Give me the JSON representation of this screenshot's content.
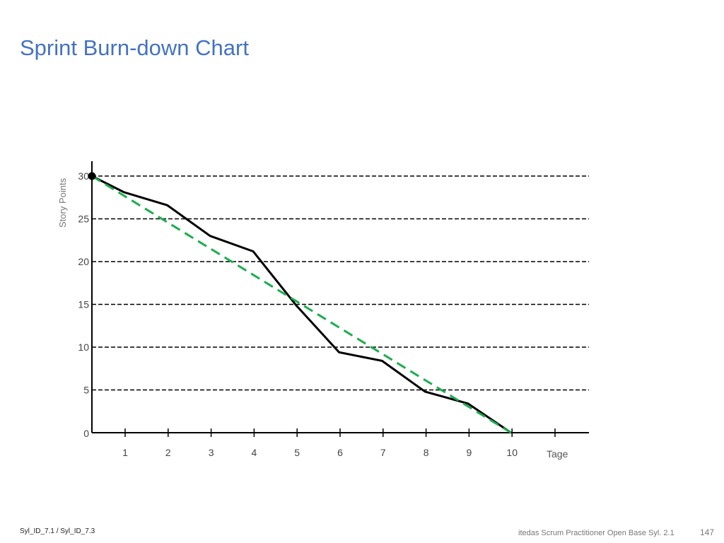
{
  "slide": {
    "title": "Sprint Burn-down Chart",
    "footer_left": "Syl_ID_7.1 / Syl_ID_7.3",
    "footer_center": "itedas Scrum Practitioner Open Base Syl. 2.1",
    "page_number": "147"
  },
  "chart_data": {
    "type": "line",
    "title": "",
    "xlabel": "Tage",
    "ylabel": "Story Points",
    "xlim": [
      0,
      11
    ],
    "ylim": [
      0,
      31
    ],
    "x_ticks": [
      1,
      2,
      3,
      4,
      5,
      6,
      7,
      8,
      9,
      10
    ],
    "y_ticks": [
      0,
      5,
      10,
      15,
      20,
      25,
      30
    ],
    "grid": "horizontal dashed",
    "colors": {
      "actual": "#000000",
      "ideal": "#1aae4f"
    },
    "series": [
      {
        "style": "solid",
        "x": [
          0,
          0.75,
          1.75,
          2.75,
          3.75,
          4.75,
          5.75,
          6.75,
          7.75,
          8.75,
          9.75
        ],
        "y": [
          30,
          28.1,
          26.6,
          23.0,
          21.2,
          14.9,
          9.4,
          8.4,
          4.8,
          3.4,
          0
        ]
      },
      {
        "style": "dashed",
        "x": [
          0,
          9.75
        ],
        "y": [
          30,
          0
        ]
      }
    ]
  }
}
